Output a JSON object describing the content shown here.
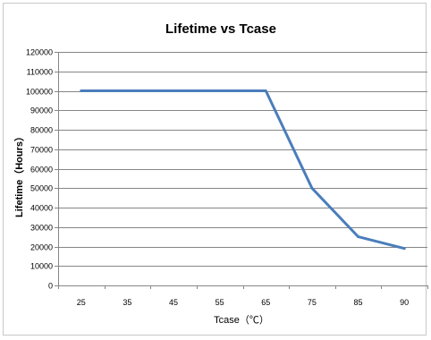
{
  "chart_data": {
    "type": "line",
    "title": "Lifetime vs Tcase",
    "xlabel": "Tcase（℃）",
    "ylabel": "Lifetime（Hours）",
    "categories": [
      "25",
      "35",
      "45",
      "55",
      "65",
      "75",
      "85",
      "90"
    ],
    "series": [
      {
        "values": [
          100000,
          100000,
          100000,
          100000,
          100000,
          50000,
          25000,
          19000
        ]
      }
    ],
    "ylim": [
      0,
      120000
    ],
    "yticks": [
      0,
      10000,
      20000,
      30000,
      40000,
      50000,
      60000,
      70000,
      80000,
      90000,
      100000,
      110000,
      120000
    ],
    "grid": true,
    "legend": "none",
    "line_color": "#4a7ebb",
    "grid_color": "#868686"
  }
}
